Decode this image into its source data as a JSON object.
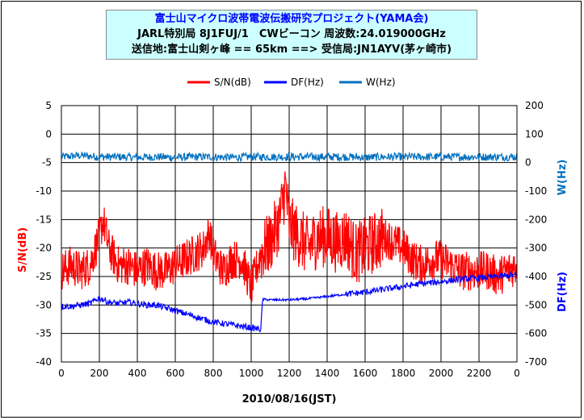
{
  "chart_data": {
    "type": "line",
    "title": "富士山マイクロ波帯電波伝搬研究プロジェクト(YAMA会)",
    "subtitle": [
      "JARL特別局 8J1FUJ/1　CWビーコン 周波数:24.019000GHz",
      "送信地:富士山剣ヶ峰 == 65km ==> 受信局:JN1AYV(茅ヶ崎市)"
    ],
    "xlabel": "2010/08/16(JST)",
    "ylabel_left": "S/N(dB)",
    "ylabel_right_top": "W(Hz)",
    "ylabel_right_bottom": "DF(Hz)",
    "x_ticks": [
      "0",
      "200",
      "400",
      "600",
      "800",
      "1000",
      "1200",
      "1400",
      "1600",
      "1800",
      "2000",
      "2200",
      "0"
    ],
    "y_left_ticks": [
      "5",
      "0",
      "-5",
      "-10",
      "-15",
      "-20",
      "-25",
      "-30",
      "-35",
      "-40"
    ],
    "y_right_ticks": [
      "200",
      "100",
      "0",
      "-100",
      "-200",
      "-300",
      "-400",
      "-500",
      "-600",
      "-700"
    ],
    "ylim_left": [
      -40,
      5
    ],
    "ylim_right": [
      -700,
      200
    ],
    "xlim": [
      0,
      2400
    ],
    "legend_position": "top",
    "grid": true,
    "series": [
      {
        "name": "S/N(dB)",
        "axis": "left",
        "color": "#ff0000",
        "x": [
          0,
          50,
          100,
          150,
          200,
          220,
          250,
          300,
          350,
          400,
          450,
          500,
          550,
          600,
          650,
          700,
          750,
          780,
          800,
          850,
          900,
          950,
          1000,
          1050,
          1100,
          1150,
          1180,
          1200,
          1250,
          1300,
          1350,
          1400,
          1450,
          1500,
          1550,
          1600,
          1650,
          1700,
          1750,
          1800,
          1850,
          1900,
          1950,
          2000,
          2050,
          2100,
          2150,
          2200,
          2250,
          2300,
          2350,
          2400
        ],
        "values": [
          -24,
          -23,
          -24,
          -23,
          -18,
          -15,
          -20,
          -23,
          -23,
          -24,
          -23,
          -24,
          -24,
          -23,
          -22,
          -21,
          -20,
          -17,
          -21,
          -24,
          -22,
          -22,
          -27,
          -21,
          -19,
          -15,
          -9,
          -16,
          -18,
          -20,
          -18,
          -18,
          -19,
          -18,
          -21,
          -20,
          -19,
          -18,
          -19,
          -20,
          -22,
          -23,
          -22,
          -22,
          -23,
          -24,
          -24,
          -24,
          -24,
          -25,
          -24,
          -23
        ]
      },
      {
        "name": "DF(Hz)",
        "axis": "right",
        "color": "#0000ff",
        "x": [
          0,
          50,
          100,
          150,
          200,
          250,
          300,
          350,
          400,
          450,
          500,
          550,
          600,
          650,
          700,
          750,
          800,
          850,
          900,
          950,
          1000,
          1050,
          1060,
          1100,
          1150,
          1200,
          1300,
          1400,
          1500,
          1600,
          1700,
          1800,
          1900,
          2000,
          2100,
          2200,
          2300,
          2400
        ],
        "values": [
          -505,
          -505,
          -500,
          -495,
          -475,
          -490,
          -495,
          -490,
          -495,
          -500,
          -500,
          -510,
          -520,
          -530,
          -540,
          -550,
          -560,
          -565,
          -570,
          -575,
          -580,
          -585,
          -480,
          -482,
          -482,
          -482,
          -478,
          -470,
          -462,
          -455,
          -445,
          -435,
          -425,
          -418,
          -410,
          -405,
          -400,
          -395
        ]
      },
      {
        "name": "W(Hz)",
        "axis": "right",
        "color": "#0070c0",
        "x": [
          0,
          100,
          200,
          300,
          400,
          500,
          600,
          700,
          800,
          900,
          1000,
          1100,
          1200,
          1300,
          1400,
          1500,
          1600,
          1700,
          1800,
          1900,
          2000,
          2100,
          2200,
          2300,
          2400
        ],
        "values": [
          20,
          25,
          20,
          20,
          18,
          20,
          18,
          20,
          20,
          18,
          20,
          20,
          20,
          20,
          20,
          20,
          18,
          20,
          20,
          20,
          20,
          20,
          20,
          20,
          20
        ]
      }
    ]
  }
}
